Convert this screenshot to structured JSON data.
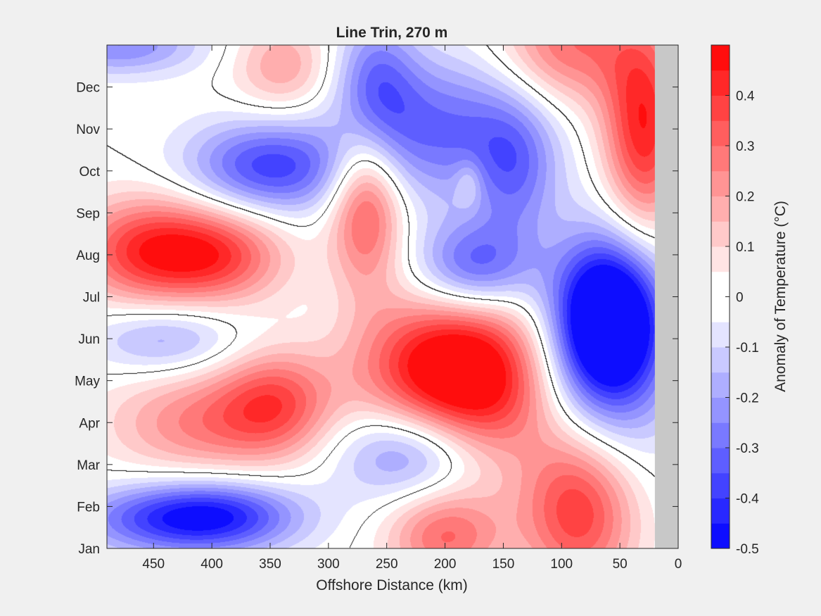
{
  "chart_data": {
    "type": "contour",
    "title": "Line Trin, 270 m",
    "xlabel": "Offshore Distance (km)",
    "xlim": [
      490,
      0
    ],
    "xticks": [
      450,
      400,
      350,
      300,
      250,
      200,
      150,
      100,
      50,
      0
    ],
    "ylim": [
      0,
      12
    ],
    "yticks": [
      {
        "label": "Jan",
        "value": 0
      },
      {
        "label": "Feb",
        "value": 1
      },
      {
        "label": "Mar",
        "value": 2
      },
      {
        "label": "Apr",
        "value": 3
      },
      {
        "label": "May",
        "value": 4
      },
      {
        "label": "Jun",
        "value": 5
      },
      {
        "label": "Jul",
        "value": 6
      },
      {
        "label": "Aug",
        "value": 7
      },
      {
        "label": "Sep",
        "value": 8
      },
      {
        "label": "Oct",
        "value": 9
      },
      {
        "label": "Nov",
        "value": 10
      },
      {
        "label": "Dec",
        "value": 11
      }
    ],
    "no_data_region": {
      "x_from": 20,
      "x_to": 0,
      "color": "#c8c8c8"
    },
    "colorbar": {
      "label": "Anomaly of Temperature (°C)",
      "range": [
        -0.5,
        0.5
      ],
      "ticks": [
        0.4,
        0.3,
        0.2,
        0.1,
        0,
        -0.1,
        -0.2,
        -0.3,
        -0.4,
        -0.5
      ],
      "tick_labels": [
        "0.4",
        "0.3",
        "0.2",
        "0.1",
        "0",
        "-0.1",
        "-0.2",
        "-0.3",
        "-0.4",
        "-0.5"
      ],
      "levels": 20,
      "negative_color": "#0000ff",
      "positive_color": "#ff0000",
      "neutral_color": "#ffffff"
    },
    "zero_contour": true,
    "anomaly_features": [
      {
        "x": 455,
        "y": 7.1,
        "value": 0.4,
        "sx": 45,
        "sy": 0.9
      },
      {
        "x": 390,
        "y": 7.0,
        "value": 0.3,
        "sx": 40,
        "sy": 0.8
      },
      {
        "x": 340,
        "y": 11.5,
        "value": 0.2,
        "sx": 30,
        "sy": 0.8
      },
      {
        "x": 268,
        "y": 8.3,
        "value": 0.38,
        "sx": 22,
        "sy": 1.4
      },
      {
        "x": 410,
        "y": 3.0,
        "value": 0.25,
        "sx": 55,
        "sy": 0.9
      },
      {
        "x": 345,
        "y": 3.5,
        "value": 0.3,
        "sx": 35,
        "sy": 0.9
      },
      {
        "x": 205,
        "y": 4.3,
        "value": 0.48,
        "sx": 50,
        "sy": 1.2
      },
      {
        "x": 160,
        "y": 3.8,
        "value": 0.25,
        "sx": 40,
        "sy": 1.5
      },
      {
        "x": 85,
        "y": 1.0,
        "value": 0.42,
        "sx": 35,
        "sy": 1.4
      },
      {
        "x": 30,
        "y": 10.0,
        "value": 0.45,
        "sx": 25,
        "sy": 1.8
      },
      {
        "x": 95,
        "y": 12.0,
        "value": 0.3,
        "sx": 40,
        "sy": 1.0
      },
      {
        "x": 200,
        "y": 0.3,
        "value": 0.3,
        "sx": 35,
        "sy": 0.8
      },
      {
        "x": 180,
        "y": 8.7,
        "value": 0.12,
        "sx": 8,
        "sy": 0.4
      },
      {
        "x": 350,
        "y": 9.1,
        "value": -0.38,
        "sx": 50,
        "sy": 0.8
      },
      {
        "x": 200,
        "y": 10.0,
        "value": -0.3,
        "sx": 55,
        "sy": 1.2
      },
      {
        "x": 260,
        "y": 11.0,
        "value": -0.28,
        "sx": 25,
        "sy": 1.2
      },
      {
        "x": 175,
        "y": 6.7,
        "value": -0.35,
        "sx": 35,
        "sy": 0.8
      },
      {
        "x": 140,
        "y": 9.0,
        "value": -0.22,
        "sx": 25,
        "sy": 1.2
      },
      {
        "x": 60,
        "y": 5.5,
        "value": -0.48,
        "sx": 30,
        "sy": 1.2
      },
      {
        "x": 60,
        "y": 4.8,
        "value": -0.35,
        "sx": 40,
        "sy": 2.0
      },
      {
        "x": 440,
        "y": 5.0,
        "value": -0.2,
        "sx": 45,
        "sy": 0.6
      },
      {
        "x": 440,
        "y": 0.7,
        "value": -0.3,
        "sx": 60,
        "sy": 0.6
      },
      {
        "x": 390,
        "y": 0.8,
        "value": -0.28,
        "sx": 50,
        "sy": 0.6
      },
      {
        "x": 230,
        "y": 2.3,
        "value": -0.28,
        "sx": 45,
        "sy": 0.8
      },
      {
        "x": 480,
        "y": 12.0,
        "value": -0.25,
        "sx": 50,
        "sy": 0.5
      }
    ]
  }
}
